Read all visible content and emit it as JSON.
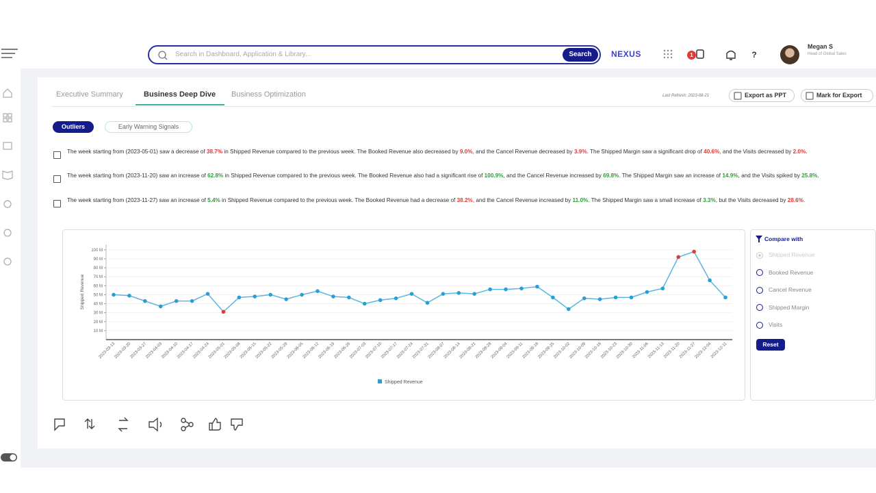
{
  "header": {
    "search_placeholder": "Search in Dashboard, Application & Library...",
    "search_button": "Search",
    "logo": "NEXUS",
    "notification_badge": "1",
    "user_name": "Megan S",
    "user_role": "Head of Global Sales"
  },
  "tabs": [
    "Executive Summary",
    "Business Deep Dive",
    "Business Optimization"
  ],
  "active_tab": 1,
  "last_refresh": "Last Refresh: 2023-08-21",
  "actions": [
    "Export as PPT",
    "Mark for Export"
  ],
  "filters": [
    "Outliers",
    "Early Warning Signals"
  ],
  "active_filter": 0,
  "insights": [
    {
      "segments": [
        {
          "text": "The week starting from "
        },
        {
          "text": "(2023-05-01)",
          "style": "bold"
        },
        {
          "text": " saw a decrease of "
        },
        {
          "text": "38.7%",
          "style": "red"
        },
        {
          "text": " in "
        },
        {
          "text": "Shipped Revenue",
          "style": "bold"
        },
        {
          "text": " compared to the previous week. The "
        },
        {
          "text": "Booked Revenue",
          "style": "bold"
        },
        {
          "text": " also decreased by "
        },
        {
          "text": "9.0%",
          "style": "red"
        },
        {
          "text": ", and the "
        },
        {
          "text": "Cancel Revenue",
          "style": "bold"
        },
        {
          "text": " decreased by "
        },
        {
          "text": "3.9%",
          "style": "red"
        },
        {
          "text": ". The "
        },
        {
          "text": "Shipped Margin",
          "style": "bold"
        },
        {
          "text": " saw a significant drop of "
        },
        {
          "text": "40.6%",
          "style": "red"
        },
        {
          "text": ", and the "
        },
        {
          "text": "Visits",
          "style": "bold"
        },
        {
          "text": " decreased by "
        },
        {
          "text": "2.0%",
          "style": "red"
        },
        {
          "text": "."
        }
      ]
    },
    {
      "segments": [
        {
          "text": "The week starting from "
        },
        {
          "text": "(2023-11-20)",
          "style": "bold"
        },
        {
          "text": " saw an increase of "
        },
        {
          "text": "62.8%",
          "style": "green"
        },
        {
          "text": " in "
        },
        {
          "text": "Shipped Revenue",
          "style": "bold"
        },
        {
          "text": " compared to the previous week. The "
        },
        {
          "text": "Booked Revenue",
          "style": "bold"
        },
        {
          "text": " also had a significant rise of "
        },
        {
          "text": "100.9%",
          "style": "green"
        },
        {
          "text": ", and the "
        },
        {
          "text": "Cancel Revenue",
          "style": "bold"
        },
        {
          "text": " increased by "
        },
        {
          "text": "69.8%",
          "style": "green"
        },
        {
          "text": ". The "
        },
        {
          "text": "Shipped Margin",
          "style": "bold"
        },
        {
          "text": " saw an increase of "
        },
        {
          "text": "14.9%",
          "style": "green"
        },
        {
          "text": ", and the "
        },
        {
          "text": "Visits",
          "style": "bold"
        },
        {
          "text": " spiked by "
        },
        {
          "text": "25.8%",
          "style": "green"
        },
        {
          "text": "."
        }
      ]
    },
    {
      "segments": [
        {
          "text": "The week starting from "
        },
        {
          "text": "(2023-11-27)",
          "style": "bold"
        },
        {
          "text": " saw an increase of "
        },
        {
          "text": "5.4%",
          "style": "green"
        },
        {
          "text": " in "
        },
        {
          "text": "Shipped Revenue",
          "style": "bold"
        },
        {
          "text": " compared to the previous week. The "
        },
        {
          "text": "Booked Revenue",
          "style": "bold"
        },
        {
          "text": " had a decrease of "
        },
        {
          "text": "38.2%",
          "style": "red"
        },
        {
          "text": ", and the "
        },
        {
          "text": "Cancel Revenue",
          "style": "bold"
        },
        {
          "text": " increased by "
        },
        {
          "text": "11.0%",
          "style": "green"
        },
        {
          "text": ". The "
        },
        {
          "text": "Shipped Margin",
          "style": "bold"
        },
        {
          "text": " saw a small increase of "
        },
        {
          "text": "3.3%",
          "style": "green"
        },
        {
          "text": ", but the "
        },
        {
          "text": "Visits",
          "style": "bold"
        },
        {
          "text": " decreased by "
        },
        {
          "text": "28.6%",
          "style": "red"
        },
        {
          "text": "."
        }
      ]
    }
  ],
  "chart_data": {
    "type": "line",
    "y_label": "Shipped Revenue",
    "categories": [
      "2023-03-13",
      "2023-03-20",
      "2023-03-27",
      "2023-04-03",
      "2023-04-10",
      "2023-04-17",
      "2023-04-24",
      "2023-05-01",
      "2023-05-08",
      "2023-05-15",
      "2023-05-22",
      "2023-05-29",
      "2023-06-05",
      "2023-06-12",
      "2023-06-19",
      "2023-06-26",
      "2023-07-03",
      "2023-07-10",
      "2023-07-17",
      "2023-07-24",
      "2023-07-31",
      "2023-08-07",
      "2023-08-14",
      "2023-08-21",
      "2023-08-28",
      "2023-09-04",
      "2023-09-11",
      "2023-09-18",
      "2023-09-25",
      "2023-10-02",
      "2023-10-09",
      "2023-10-16",
      "2023-10-23",
      "2023-10-30",
      "2023-11-06",
      "2023-11-13",
      "2023-11-20",
      "2023-11-27",
      "2023-12-04",
      "2023-12-11"
    ],
    "series": [
      {
        "name": "Shipped Revenue",
        "color": "#5bb5e0",
        "values": [
          50,
          49,
          43,
          37,
          43,
          43,
          51,
          31,
          47,
          48,
          50,
          45,
          50,
          54,
          48,
          47,
          40,
          44,
          46,
          51,
          41,
          51,
          52,
          51,
          56,
          56,
          57,
          59,
          47,
          34,
          46,
          45,
          47,
          47,
          53,
          57,
          92,
          98,
          66,
          47
        ],
        "point_colors": [
          "#2a9fd6",
          "#2a9fd6",
          "#2a9fd6",
          "#2a9fd6",
          "#2a9fd6",
          "#2a9fd6",
          "#2a9fd6",
          "#e53935",
          "#2a9fd6",
          "#2a9fd6",
          "#2a9fd6",
          "#2a9fd6",
          "#2a9fd6",
          "#2a9fd6",
          "#2a9fd6",
          "#2a9fd6",
          "#2a9fd6",
          "#2a9fd6",
          "#2a9fd6",
          "#2a9fd6",
          "#2a9fd6",
          "#2a9fd6",
          "#2a9fd6",
          "#2a9fd6",
          "#2a9fd6",
          "#2a9fd6",
          "#2a9fd6",
          "#2a9fd6",
          "#2a9fd6",
          "#2a9fd6",
          "#2a9fd6",
          "#2a9fd6",
          "#2a9fd6",
          "#2a9fd6",
          "#2a9fd6",
          "#2a9fd6",
          "#e53935",
          "#e53935",
          "#2a9fd6",
          "#2a9fd6"
        ]
      }
    ],
    "ylim": [
      0,
      106
    ],
    "yticks": [
      {
        "value": 10,
        "label": "10 M"
      },
      {
        "value": 20,
        "label": "20 M"
      },
      {
        "value": 30,
        "label": "30 M"
      },
      {
        "value": 40,
        "label": "40 M"
      },
      {
        "value": 50,
        "label": "50 M"
      },
      {
        "value": 60,
        "label": "60 M"
      },
      {
        "value": 70,
        "label": "70 M"
      },
      {
        "value": 80,
        "label": "80 M"
      },
      {
        "value": 90,
        "label": "90 M"
      },
      {
        "value": 100,
        "label": "100 M"
      }
    ],
    "grid": true,
    "legend": "bottom"
  },
  "compare_panel": {
    "title": "Compare with",
    "options": [
      "Shipped Revenue",
      "Booked Revenue",
      "Cancel Revenue",
      "Shipped Margin",
      "Visits"
    ],
    "selected": 0,
    "reset": "Reset"
  }
}
